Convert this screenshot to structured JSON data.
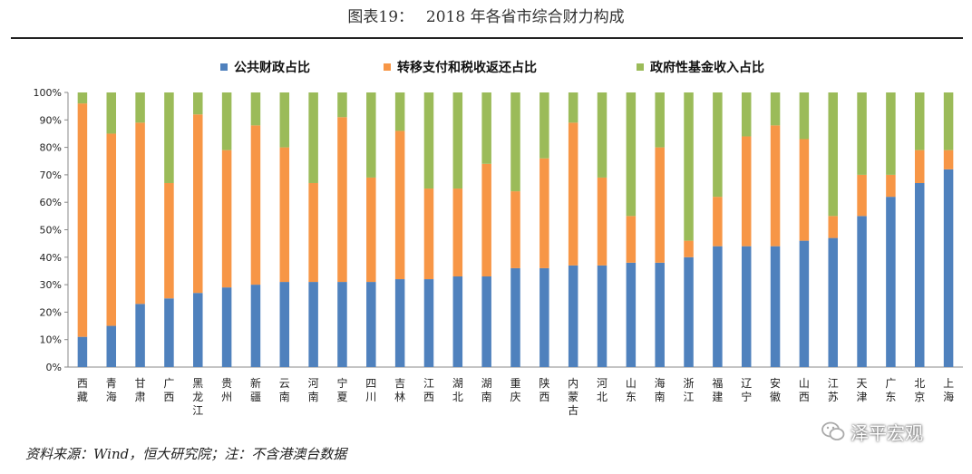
{
  "title": "图表19：　 2018 年各省市综合财力构成",
  "source_note": "资料来源：Wind，恒大研究院；注：不含港澳台数据",
  "watermark": {
    "text": "泽平宏观",
    "icon": "wechat-icon"
  },
  "chart_data": {
    "type": "bar",
    "stacked": true,
    "percent": true,
    "title": "2018 年各省市综合财力构成",
    "legend_position": "top",
    "ylim": [
      0,
      100
    ],
    "y_ticks": [
      "0%",
      "10%",
      "20%",
      "30%",
      "40%",
      "50%",
      "60%",
      "70%",
      "80%",
      "90%",
      "100%"
    ],
    "categories": [
      "西藏",
      "青海",
      "甘肃",
      "广西",
      "黑龙江",
      "贵州",
      "新疆",
      "云南",
      "河南",
      "宁夏",
      "四川",
      "吉林",
      "江西",
      "湖北",
      "湖南",
      "重庆",
      "陕西",
      "内蒙古",
      "河北",
      "山东",
      "海南",
      "浙江",
      "福建",
      "辽宁",
      "安徽",
      "山西",
      "江苏",
      "天津",
      "广东",
      "北京",
      "上海"
    ],
    "series": [
      {
        "name": "公共财政占比",
        "color": "#4F81BD",
        "values": [
          11,
          15,
          23,
          25,
          27,
          29,
          30,
          31,
          31,
          31,
          31,
          32,
          32,
          33,
          33,
          36,
          36,
          37,
          37,
          38,
          38,
          40,
          44,
          44,
          44,
          46,
          47,
          55,
          62,
          67,
          72
        ]
      },
      {
        "name": "转移支付和税收返还占比",
        "color": "#F79646",
        "values": [
          85,
          70,
          66,
          42,
          65,
          50,
          58,
          49,
          36,
          60,
          38,
          54,
          33,
          32,
          41,
          28,
          40,
          52,
          32,
          17,
          42,
          6,
          18,
          40,
          44,
          37,
          8,
          15,
          8,
          12,
          7
        ]
      },
      {
        "name": "政府性基金收入占比",
        "color": "#9BBB59",
        "values": [
          4,
          15,
          11,
          33,
          8,
          21,
          12,
          20,
          33,
          9,
          31,
          14,
          35,
          35,
          26,
          36,
          24,
          11,
          31,
          45,
          20,
          54,
          38,
          16,
          12,
          17,
          45,
          30,
          30,
          21,
          21
        ]
      }
    ]
  }
}
